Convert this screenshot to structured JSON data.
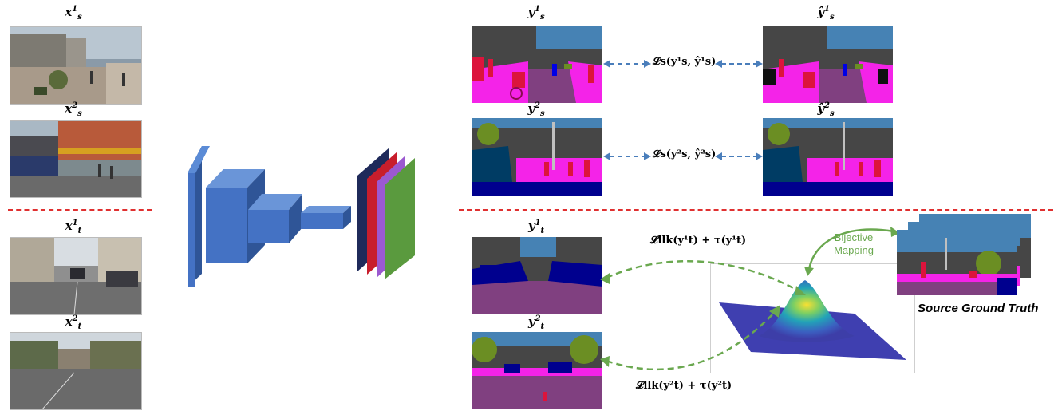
{
  "source_images": [
    {
      "base": "x",
      "sup": "1",
      "sub": "s"
    },
    {
      "base": "x",
      "sup": "2",
      "sub": "s"
    }
  ],
  "target_images": [
    {
      "base": "x",
      "sup": "1",
      "sub": "t"
    },
    {
      "base": "x",
      "sup": "2",
      "sub": "t"
    }
  ],
  "source_gt": [
    {
      "base": "y",
      "sup": "1",
      "sub": "s"
    },
    {
      "base": "y",
      "sup": "2",
      "sub": "s"
    }
  ],
  "source_pred": [
    {
      "base": "ŷ",
      "sup": "1",
      "sub": "s"
    },
    {
      "base": "ŷ",
      "sup": "2",
      "sub": "s"
    }
  ],
  "target_pred": [
    {
      "base": "y",
      "sup": "1",
      "sub": "t"
    },
    {
      "base": "y",
      "sup": "2",
      "sub": "t"
    }
  ],
  "losses": {
    "source_1": "𝓛s(y¹s, ŷ¹s)",
    "source_2": "𝓛s(y²s, ŷ²s)",
    "target_1": "𝓛llk(y¹t) + τ(y¹t)",
    "target_2": "𝓛llk(y²t) + τ(y²t)"
  },
  "mapping_label": "Bijective Mapping",
  "source_gt_caption": "Source Ground Truth",
  "colors": {
    "network": "#4472c4",
    "separator": "#e03030",
    "arrow_blue": "#4a7ebb",
    "arrow_green": "#6aa84f",
    "seg_road": "#804080",
    "seg_sidewalk": "#f423e8",
    "seg_building": "#464646",
    "seg_sky": "#4682b4",
    "seg_vegetation": "#6b8e23",
    "seg_person": "#dc143c",
    "seg_car": "#00008e"
  }
}
